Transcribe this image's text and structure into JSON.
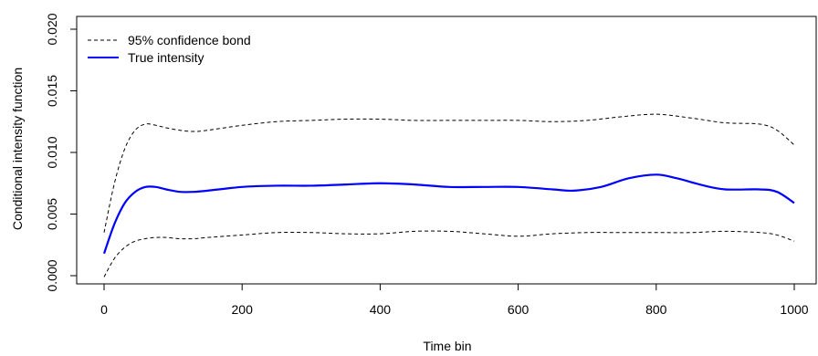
{
  "chart_data": {
    "type": "line",
    "title": "",
    "xlabel": "Time bin",
    "ylabel": "Conditional intensity function",
    "xlim": [
      0,
      1000
    ],
    "ylim": [
      0,
      0.02
    ],
    "x_ticks": [
      0,
      200,
      400,
      600,
      800,
      1000
    ],
    "x_tick_labels": [
      "0",
      "200",
      "400",
      "600",
      "800",
      "1000"
    ],
    "y_ticks": [
      0,
      0.005,
      0.01,
      0.015,
      0.02
    ],
    "y_tick_labels": [
      "0.000",
      "0.005",
      "0.010",
      "0.015",
      "0.020"
    ],
    "grid": false,
    "legend_position": "top-left",
    "series": [
      {
        "name": "95% confidence bond",
        "style": "dashed",
        "color": "#000000",
        "x": [
          0,
          15,
          30,
          45,
          60,
          75,
          90,
          110,
          130,
          150,
          200,
          250,
          300,
          350,
          400,
          450,
          500,
          550,
          600,
          650,
          700,
          750,
          800,
          850,
          900,
          950,
          975,
          1000
        ],
        "y": [
          0.0035,
          0.0075,
          0.0103,
          0.0118,
          0.0123,
          0.0122,
          0.012,
          0.0118,
          0.0117,
          0.0118,
          0.0122,
          0.0125,
          0.0126,
          0.0127,
          0.0127,
          0.0126,
          0.0126,
          0.0126,
          0.0126,
          0.0125,
          0.0126,
          0.0129,
          0.0131,
          0.0128,
          0.0124,
          0.0123,
          0.0118,
          0.0106
        ]
      },
      {
        "name": "True intensity",
        "style": "solid",
        "color": "#0000ff",
        "x": [
          0,
          15,
          30,
          45,
          60,
          75,
          90,
          110,
          130,
          150,
          200,
          250,
          300,
          350,
          400,
          450,
          500,
          550,
          600,
          650,
          680,
          720,
          760,
          800,
          830,
          870,
          900,
          950,
          975,
          1000
        ],
        "y": [
          0.0018,
          0.0042,
          0.0059,
          0.0068,
          0.0072,
          0.0072,
          0.007,
          0.0068,
          0.0068,
          0.0069,
          0.0072,
          0.0073,
          0.0073,
          0.0074,
          0.0075,
          0.0074,
          0.0072,
          0.0072,
          0.0072,
          0.007,
          0.0069,
          0.0072,
          0.0079,
          0.0082,
          0.0079,
          0.0073,
          0.007,
          0.007,
          0.0068,
          0.0059
        ]
      },
      {
        "name": "95% confidence bond",
        "style": "dashed",
        "color": "#000000",
        "legend": false,
        "x": [
          0,
          15,
          30,
          45,
          60,
          75,
          90,
          110,
          130,
          150,
          200,
          250,
          300,
          350,
          400,
          450,
          500,
          550,
          600,
          650,
          700,
          750,
          800,
          850,
          900,
          950,
          975,
          1000
        ],
        "y": [
          -0.0001,
          0.0014,
          0.0023,
          0.0028,
          0.003,
          0.0031,
          0.0031,
          0.003,
          0.003,
          0.0031,
          0.0033,
          0.0035,
          0.0035,
          0.0034,
          0.0034,
          0.0036,
          0.0036,
          0.0034,
          0.0032,
          0.0034,
          0.0035,
          0.0035,
          0.0035,
          0.0035,
          0.0036,
          0.0035,
          0.0033,
          0.0028
        ]
      }
    ]
  }
}
